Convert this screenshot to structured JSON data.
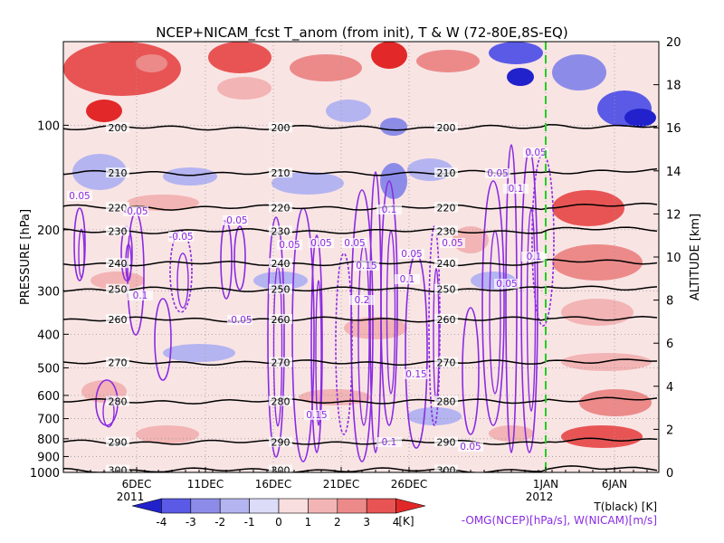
{
  "chart_data": {
    "type": "heatmap",
    "title": "NCEP+NICAM_fcst T_anom (from init), T & W  (72-80E,8S-EQ)",
    "ylabel_left": "PRESSURE [hPa]",
    "ylabel_right": "ALTITUDE [km]",
    "pressure_ticks": [
      "100",
      "200",
      "300",
      "400",
      "500",
      "600",
      "700",
      "800",
      "900",
      "1000"
    ],
    "altitude_ticks": [
      "0",
      "2",
      "4",
      "6",
      "8",
      "10",
      "12",
      "14",
      "16",
      "18",
      "20"
    ],
    "date_ticks": [
      {
        "label": "6DEC",
        "year": "2011"
      },
      {
        "label": "11DEC",
        "year": ""
      },
      {
        "label": "16DEC",
        "year": ""
      },
      {
        "label": "21DEC",
        "year": ""
      },
      {
        "label": "26DEC",
        "year": ""
      },
      {
        "label": "1JAN",
        "year": "2012"
      },
      {
        "label": "6JAN",
        "year": ""
      }
    ],
    "colorbar": {
      "labels": [
        "-4",
        "-3",
        "-2",
        "-1",
        "0",
        "1",
        "2",
        "3",
        "4"
      ],
      "unit": "[K]",
      "colors": [
        "#2222cc",
        "#5a5ae6",
        "#8c8ce8",
        "#b4b4f0",
        "#dcdcf8",
        "#f8dede",
        "#f2b4b4",
        "#ec8a8a",
        "#e85454",
        "#e22828"
      ]
    },
    "legend": {
      "temperature": "T(black) [K]",
      "wind": "-OMG(NCEP)[hPa/s], W(NICAM)[m/s]"
    },
    "forecast_start": "1JAN",
    "temperature_contours": [
      {
        "label": "200",
        "altitude_km": 16.0
      },
      {
        "label": "210",
        "altitude_km": 13.9
      },
      {
        "label": "220",
        "altitude_km": 12.3
      },
      {
        "label": "230",
        "altitude_km": 11.2
      },
      {
        "label": "240",
        "altitude_km": 9.7
      },
      {
        "label": "250",
        "altitude_km": 8.5
      },
      {
        "label": "260",
        "altitude_km": 7.1
      },
      {
        "label": "270",
        "altitude_km": 5.1
      },
      {
        "label": "280",
        "altitude_km": 3.3
      },
      {
        "label": "290",
        "altitude_km": 1.4
      },
      {
        "label": "300",
        "altitude_km": 0.1
      }
    ],
    "wind_contour_labels": [
      "0.05",
      "-0.05",
      "0.1",
      "0.15",
      "0.2"
    ]
  }
}
